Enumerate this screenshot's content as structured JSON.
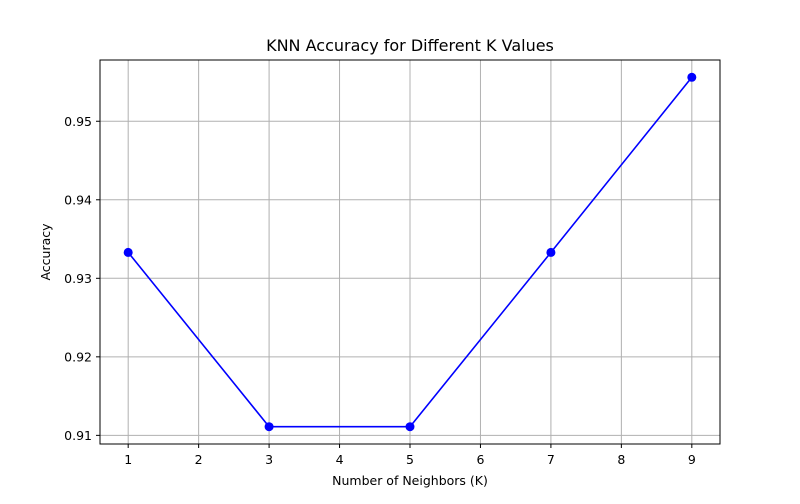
{
  "chart_data": {
    "type": "line",
    "title": "KNN Accuracy for Different K Values",
    "xlabel": "Number of Neighbors (K)",
    "ylabel": "Accuracy",
    "x": [
      1,
      3,
      5,
      7,
      9
    ],
    "series": [
      {
        "values": [
          0.9333,
          0.9111,
          0.9111,
          0.9333,
          0.9556
        ],
        "color": "#0000ff",
        "marker": "circle"
      }
    ],
    "xticks": [
      1,
      2,
      3,
      4,
      5,
      6,
      7,
      8,
      9
    ],
    "xtick_labels": [
      "1",
      "2",
      "3",
      "4",
      "5",
      "6",
      "7",
      "8",
      "9"
    ],
    "yticks": [
      0.91,
      0.92,
      0.93,
      0.94,
      0.95
    ],
    "ytick_labels": [
      "0.91",
      "0.92",
      "0.93",
      "0.94",
      "0.95"
    ],
    "xlim": [
      0.6,
      9.4
    ],
    "ylim": [
      0.9089,
      0.9578
    ],
    "grid": true,
    "grid_color": "#b0b0b0"
  }
}
